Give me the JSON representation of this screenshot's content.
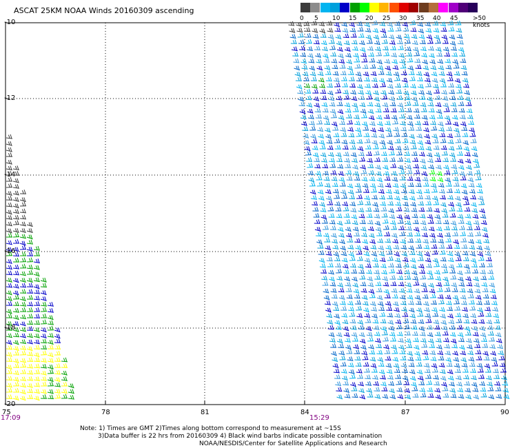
{
  "title": "ASCAT 25KM NOAA Winds 20160309 ascending",
  "legend": {
    "labels": [
      "0",
      "5",
      "10",
      "15",
      "20",
      "25",
      "30",
      "35",
      "40",
      "45"
    ],
    "end_label": ">50 knots",
    "colors": [
      "#3c3c3c",
      "#8c8c8c",
      "#00b4f0",
      "#00a0dc",
      "#0000c8",
      "#00a000",
      "#00ff00",
      "#ffff00",
      "#ffb400",
      "#ff5000",
      "#e00000",
      "#a00000",
      "#6e3c1e",
      "#b46e3c",
      "#ff00ff",
      "#a000c8",
      "#500078",
      "#28005a"
    ]
  },
  "axes": {
    "lat_labels": [
      "-10",
      "-12",
      "-14",
      "-16",
      "-18",
      "-20"
    ],
    "lon_labels": [
      "75",
      "78",
      "81",
      "84",
      "87",
      "90"
    ],
    "time_labels": [
      "17:09",
      "15:29"
    ]
  },
  "notes": [
    "Note: 1) Times are GMT 2)Times along bottom correspond to measurement at ~15S",
    "3)Data buffer is 22 hrs from 20160309 4) Black wind barbs indicate possible contamination",
    "NOAA/NESDIS/Center for Satellite Applications and Research"
  ]
}
